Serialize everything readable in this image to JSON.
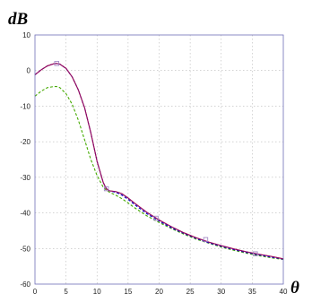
{
  "chart_data": {
    "type": "line",
    "ylabel": "dB",
    "xlabel": "θ",
    "xlim": [
      0,
      40
    ],
    "ylim": [
      -60,
      10
    ],
    "x_ticks": [
      0,
      5,
      10,
      15,
      20,
      25,
      30,
      35,
      40
    ],
    "y_ticks": [
      10,
      0,
      -10,
      -20,
      -30,
      -40,
      -50,
      -60
    ],
    "grid": true,
    "legend": "none",
    "series": [
      {
        "color": "#cc0000",
        "style": "solid",
        "x": [
          0,
          1,
          2,
          3,
          3.5,
          4,
          5,
          6,
          7,
          8,
          9,
          10,
          11,
          11.5,
          12,
          13,
          14,
          15,
          16,
          18,
          20,
          22,
          24,
          26,
          28,
          30,
          32,
          34,
          36,
          38,
          40
        ],
        "y": [
          -1.2,
          0.2,
          1.3,
          1.9,
          2.0,
          1.8,
          0.6,
          -1.8,
          -5.5,
          -10.5,
          -17.5,
          -25.5,
          -31.5,
          -33.2,
          -33.8,
          -34.0,
          -34.6,
          -35.8,
          -37.2,
          -39.8,
          -42.0,
          -43.9,
          -45.6,
          -47.0,
          -48.2,
          -49.2,
          -50.1,
          -50.9,
          -51.6,
          -52.2,
          -52.9
        ]
      },
      {
        "color": "#0000cc",
        "style": "dashed",
        "x": [
          0,
          1,
          2,
          3,
          3.5,
          4,
          5,
          6,
          7,
          8,
          9,
          10,
          11,
          11.5,
          12,
          13,
          14,
          15,
          16,
          18,
          20,
          22,
          24,
          26,
          28,
          30,
          32,
          34,
          36,
          38,
          40
        ],
        "y": [
          -1.2,
          0.2,
          1.3,
          1.9,
          2.0,
          1.8,
          0.6,
          -1.8,
          -5.5,
          -10.5,
          -17.5,
          -25.5,
          -31.5,
          -33.2,
          -33.8,
          -34.2,
          -35.0,
          -36.2,
          -37.6,
          -40.2,
          -42.3,
          -44.2,
          -45.8,
          -47.2,
          -48.4,
          -49.4,
          -50.3,
          -51.1,
          -51.8,
          -52.4,
          -53.0
        ]
      },
      {
        "color": "#44aa00",
        "style": "dashed",
        "x": [
          0,
          1,
          2,
          3,
          3.5,
          4,
          5,
          6,
          7,
          8,
          9,
          10,
          11,
          11.5,
          12,
          13,
          14,
          15,
          16,
          18,
          20,
          22,
          24,
          26,
          28,
          30,
          32,
          34,
          36,
          38,
          40
        ],
        "y": [
          -7.2,
          -5.8,
          -4.8,
          -4.5,
          -4.5,
          -4.8,
          -6.5,
          -9.5,
          -14.0,
          -19.5,
          -25.0,
          -29.5,
          -32.8,
          -33.6,
          -34.2,
          -35.0,
          -36.0,
          -37.2,
          -38.5,
          -40.8,
          -42.7,
          -44.4,
          -46.0,
          -47.4,
          -48.5,
          -49.6,
          -50.5,
          -51.3,
          -52.0,
          -52.6,
          -53.1
        ]
      }
    ],
    "markers": [
      {
        "x": 3.5,
        "y": 2.0
      },
      {
        "x": 11.5,
        "y": -33.2
      },
      {
        "x": 19.5,
        "y": -41.5
      },
      {
        "x": 27.5,
        "y": -47.5
      },
      {
        "x": 35.5,
        "y": -51.5
      }
    ],
    "marker_color": "#9a7fc0"
  }
}
